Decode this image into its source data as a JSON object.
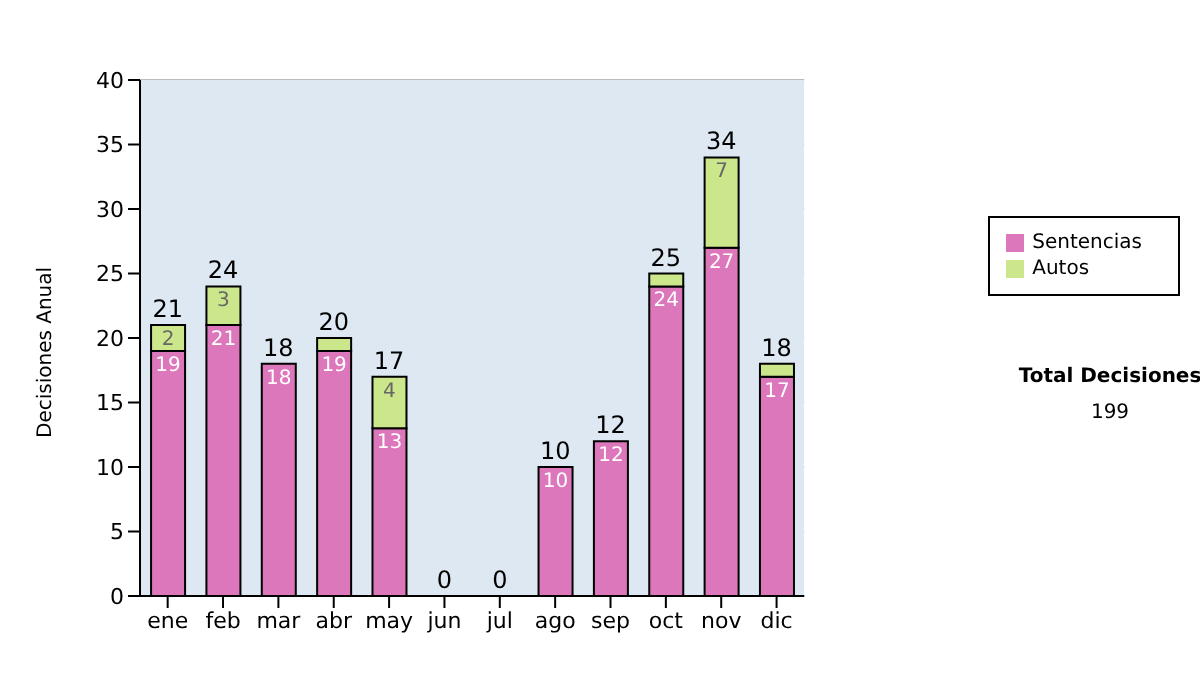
{
  "chart_data": {
    "type": "bar",
    "ylabel": "Decisiones Anual",
    "categories": [
      "ene",
      "feb",
      "mar",
      "abr",
      "may",
      "jun",
      "jul",
      "ago",
      "sep",
      "oct",
      "nov",
      "dic"
    ],
    "series": [
      {
        "name": "Sentencias",
        "color": "#dd77bb",
        "values": [
          19,
          21,
          18,
          19,
          13,
          0,
          0,
          10,
          12,
          24,
          27,
          17
        ],
        "value_labels": [
          "19",
          "21",
          "18",
          "19",
          "13",
          null,
          null,
          "10",
          "12",
          "24",
          "27",
          "17"
        ]
      },
      {
        "name": "Autos",
        "color": "#cce68c",
        "values": [
          2,
          3,
          0,
          1,
          4,
          0,
          0,
          0,
          0,
          1,
          7,
          1
        ],
        "value_labels": [
          "2",
          "3",
          null,
          null,
          "4",
          null,
          null,
          null,
          null,
          null,
          "7",
          null
        ]
      }
    ],
    "stacked": true,
    "totals": [
      "21",
      "24",
      "18",
      "20",
      "17",
      "0",
      "0",
      "10",
      "12",
      "25",
      "34",
      "18"
    ],
    "ylim": [
      0,
      40
    ],
    "yticks": [
      0,
      5,
      10,
      15,
      20,
      25,
      30,
      35,
      40
    ],
    "grid": "y",
    "legend": "right",
    "annotations": [
      "Total Decisiones",
      "199"
    ]
  }
}
